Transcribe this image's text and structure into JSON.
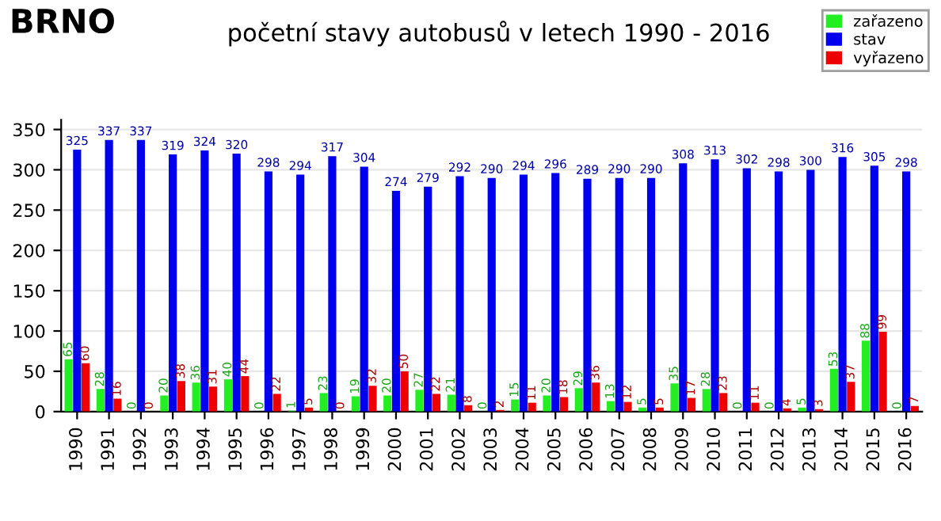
{
  "chart_data": {
    "type": "bar",
    "title": "BRNO",
    "subtitle": "početní stavy autobusů v letech 1990 - 2016",
    "categories": [
      "1990",
      "1991",
      "1992",
      "1993",
      "1994",
      "1995",
      "1996",
      "1997",
      "1998",
      "1999",
      "2000",
      "2001",
      "2002",
      "2003",
      "2004",
      "2005",
      "2006",
      "2007",
      "2008",
      "2009",
      "2010",
      "2011",
      "2012",
      "2013",
      "2014",
      "2015",
      "2016"
    ],
    "series": [
      {
        "name": "zařazeno",
        "color": "#22ee22",
        "values": [
          65,
          28,
          0,
          20,
          36,
          40,
          0,
          1,
          23,
          19,
          20,
          27,
          21,
          0,
          15,
          20,
          29,
          13,
          5,
          35,
          28,
          0,
          0,
          5,
          53,
          88,
          0
        ]
      },
      {
        "name": "stav",
        "color": "#0000ee",
        "values": [
          325,
          337,
          337,
          319,
          324,
          320,
          298,
          294,
          317,
          304,
          274,
          279,
          292,
          290,
          294,
          296,
          289,
          290,
          290,
          308,
          313,
          302,
          298,
          300,
          316,
          305,
          298
        ]
      },
      {
        "name": "vyřazeno",
        "color": "#ee0000",
        "values": [
          60,
          16,
          0,
          38,
          31,
          44,
          22,
          5,
          0,
          32,
          50,
          22,
          8,
          2,
          11,
          18,
          36,
          12,
          5,
          17,
          23,
          11,
          4,
          3,
          37,
          99,
          7
        ]
      }
    ],
    "ylim": [
      0,
      362
    ],
    "yticks": [
      0,
      50,
      100,
      150,
      200,
      250,
      300,
      350
    ],
    "grid": "y",
    "legend": "top right",
    "data_labels": true
  }
}
